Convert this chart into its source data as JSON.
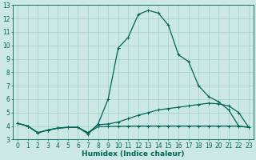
{
  "xlabel": "Humidex (Indice chaleur)",
  "ylabel": "",
  "bg_color": "#cce8e4",
  "grid_color": "#a8d4ce",
  "line_color": "#006655",
  "xlim": [
    -0.5,
    23.5
  ],
  "ylim": [
    3,
    13
  ],
  "xticks": [
    0,
    1,
    2,
    3,
    4,
    5,
    6,
    7,
    8,
    9,
    10,
    11,
    12,
    13,
    14,
    15,
    16,
    17,
    18,
    19,
    20,
    21,
    22,
    23
  ],
  "yticks": [
    3,
    4,
    5,
    6,
    7,
    8,
    9,
    10,
    11,
    12,
    13
  ],
  "series1": [
    [
      0,
      4.2
    ],
    [
      1,
      4.0
    ],
    [
      2,
      3.5
    ],
    [
      3,
      3.7
    ],
    [
      4,
      3.85
    ],
    [
      5,
      3.9
    ],
    [
      6,
      3.9
    ],
    [
      7,
      3.4
    ],
    [
      8,
      4.15
    ],
    [
      9,
      6.0
    ],
    [
      10,
      9.8
    ],
    [
      11,
      10.6
    ],
    [
      12,
      12.3
    ],
    [
      13,
      12.6
    ],
    [
      14,
      12.4
    ],
    [
      15,
      11.5
    ],
    [
      16,
      9.3
    ],
    [
      17,
      8.8
    ],
    [
      18,
      7.0
    ],
    [
      19,
      6.2
    ],
    [
      20,
      5.8
    ],
    [
      21,
      5.2
    ],
    [
      22,
      4.0
    ],
    [
      23,
      3.9
    ]
  ],
  "series2": [
    [
      0,
      4.2
    ],
    [
      1,
      4.0
    ],
    [
      2,
      3.5
    ],
    [
      3,
      3.7
    ],
    [
      4,
      3.85
    ],
    [
      5,
      3.9
    ],
    [
      6,
      3.9
    ],
    [
      7,
      3.5
    ],
    [
      8,
      4.1
    ],
    [
      9,
      4.15
    ],
    [
      10,
      4.3
    ],
    [
      11,
      4.55
    ],
    [
      12,
      4.8
    ],
    [
      13,
      5.0
    ],
    [
      14,
      5.2
    ],
    [
      15,
      5.3
    ],
    [
      16,
      5.4
    ],
    [
      17,
      5.5
    ],
    [
      18,
      5.6
    ],
    [
      19,
      5.7
    ],
    [
      20,
      5.65
    ],
    [
      21,
      5.5
    ],
    [
      22,
      5.0
    ],
    [
      23,
      3.9
    ]
  ],
  "series3": [
    [
      0,
      4.2
    ],
    [
      1,
      4.0
    ],
    [
      2,
      3.5
    ],
    [
      3,
      3.7
    ],
    [
      4,
      3.85
    ],
    [
      5,
      3.9
    ],
    [
      6,
      3.9
    ],
    [
      7,
      3.5
    ],
    [
      8,
      3.95
    ],
    [
      9,
      3.97
    ],
    [
      10,
      3.98
    ],
    [
      11,
      3.99
    ],
    [
      12,
      4.0
    ],
    [
      13,
      4.0
    ],
    [
      14,
      4.0
    ],
    [
      15,
      4.0
    ],
    [
      16,
      4.0
    ],
    [
      17,
      4.0
    ],
    [
      18,
      4.0
    ],
    [
      19,
      4.0
    ],
    [
      20,
      4.0
    ],
    [
      21,
      4.0
    ],
    [
      22,
      4.0
    ],
    [
      23,
      3.9
    ]
  ]
}
